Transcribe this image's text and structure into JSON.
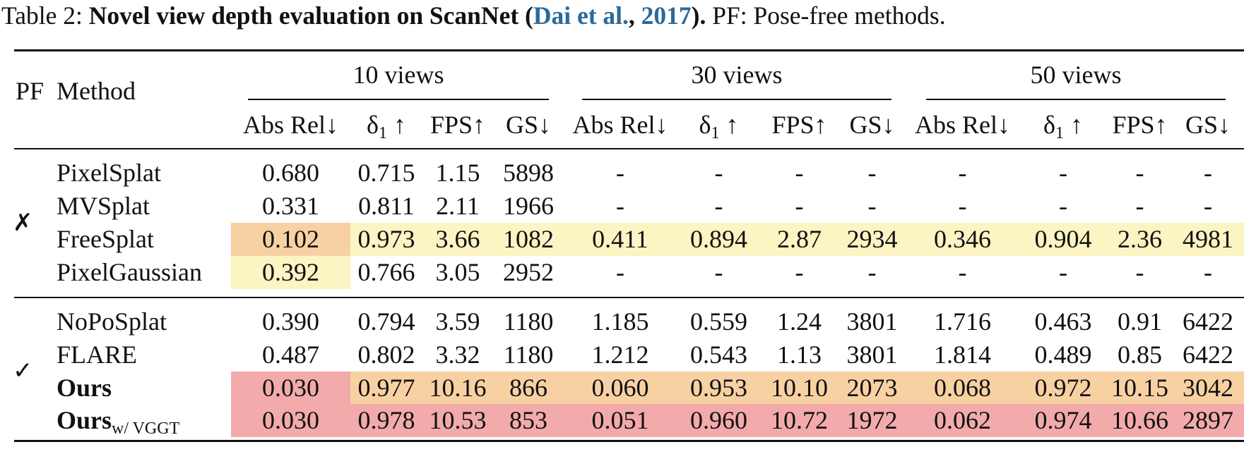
{
  "caption": {
    "label": "Table 2:",
    "title": "Novel view depth evaluation on ScanNet (",
    "cite_author": "Dai et al.",
    "cite_sep": ", ",
    "cite_year": "2017",
    "title_end": ").",
    "note": "PF: Pose-free methods."
  },
  "table": {
    "header": {
      "pf": "PF",
      "method": "Method",
      "groups": [
        "10 views",
        "30 views",
        "50 views"
      ],
      "metrics": [
        "Abs Rel↓",
        {
          "text": "δ",
          "sub": "1",
          "suffix": " ↑"
        },
        "FPS↑",
        "GS↓",
        "Abs Rel↓",
        {
          "text": "δ",
          "sub": "1",
          "suffix": " ↑"
        },
        "FPS↑",
        "GS↓",
        "Abs Rel↓",
        {
          "text": "δ",
          "sub": "1",
          "suffix": " ↑"
        },
        "FPS↑",
        "GS↓"
      ]
    },
    "sections": [
      {
        "pf": "✗",
        "rows": [
          {
            "method": "PixelSplat",
            "cells": [
              "0.680",
              "0.715",
              "1.15",
              "5898",
              "-",
              "-",
              "-",
              "-",
              "-",
              "-",
              "-",
              "-"
            ]
          },
          {
            "method": "MVSplat",
            "cells": [
              "0.331",
              "0.811",
              "2.11",
              "1966",
              "-",
              "-",
              "-",
              "-",
              "-",
              "-",
              "-",
              "-"
            ]
          },
          {
            "method": "FreeSplat",
            "cells": [
              "0.102",
              "0.973",
              "3.66",
              "1082",
              "0.411",
              "0.894",
              "2.87",
              "2934",
              "0.346",
              "0.904",
              "2.36",
              "4981"
            ]
          },
          {
            "method": "PixelGaussian",
            "cells": [
              "0.392",
              "0.766",
              "3.05",
              "2952",
              "-",
              "-",
              "-",
              "-",
              "-",
              "-",
              "-",
              "-"
            ]
          }
        ]
      },
      {
        "pf": "✓",
        "rows": [
          {
            "method": "NoPoSplat",
            "cells": [
              "0.390",
              "0.794",
              "3.59",
              "1180",
              "1.185",
              "0.559",
              "1.24",
              "3801",
              "1.716",
              "0.463",
              "0.91",
              "6422"
            ]
          },
          {
            "method": "FLARE",
            "cells": [
              "0.487",
              "0.802",
              "3.32",
              "1180",
              "1.212",
              "0.543",
              "1.13",
              "3801",
              "1.814",
              "0.489",
              "0.85",
              "6422"
            ]
          },
          {
            "method": {
              "text": "Ours"
            },
            "cells": [
              "0.030",
              "0.977",
              "10.16",
              "866",
              "0.060",
              "0.953",
              "10.10",
              "2073",
              "0.068",
              "0.972",
              "10.15",
              "3042"
            ]
          },
          {
            "method": {
              "text": "Ours",
              "sub": "w/ VGGT"
            },
            "cells": [
              "0.030",
              "0.978",
              "10.53",
              "853",
              "0.051",
              "0.960",
              "10.72",
              "1972",
              "0.062",
              "0.974",
              "10.66",
              "2897"
            ]
          }
        ]
      }
    ]
  }
}
